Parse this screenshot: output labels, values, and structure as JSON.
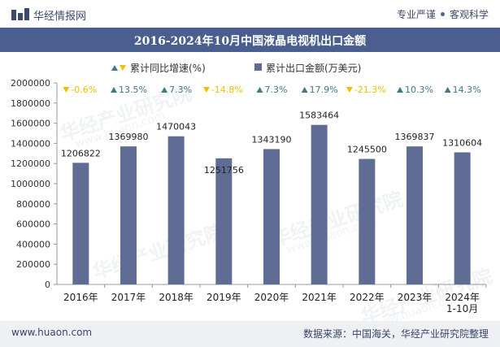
{
  "header": {
    "brand": "华经情报网",
    "tagline_left": "专业严谨",
    "tagline_right": "客观科学"
  },
  "footer": {
    "site": "www.huaon.com",
    "source": "数据来源：中国海关，华经产业研究院整理"
  },
  "watermark": {
    "text": "华经产业研究院",
    "url": "www.huaon.com"
  },
  "colors": {
    "bar": "#5f6d95",
    "growth_up": "#3e7a86",
    "growth_down": "#f0c000",
    "title_bg": "#4a5f8f",
    "brand": "#3d4a6b"
  },
  "chart_data": {
    "type": "bar",
    "title": "2016-2024年10月中国液晶电视机出口金额",
    "legend": {
      "growth_label": "累计同比增速(%)",
      "value_label": "累计出口金额(万美元)",
      "placement": "top"
    },
    "categories": [
      "2016年",
      "2017年",
      "2018年",
      "2019年",
      "2020年",
      "2021年",
      "2022年",
      "2023年",
      "2024年\n1-10月"
    ],
    "values": [
      1206822,
      1369980,
      1470043,
      1251756,
      1343190,
      1583464,
      1245500,
      1369837,
      1310604
    ],
    "value_labels": [
      "1206822",
      "1369980",
      "1470043",
      "1251756",
      "1343190",
      "1583464",
      "1245500",
      "1369837",
      "1310604"
    ],
    "growth": [
      -0.6,
      13.5,
      7.3,
      -14.8,
      7.3,
      17.9,
      -21.3,
      10.3,
      14.3
    ],
    "growth_labels": [
      "-0.6%",
      "13.5%",
      "7.3%",
      "-14.8%",
      "7.3%",
      "17.9%",
      "-21.3%",
      "10.3%",
      "14.3%"
    ],
    "y_ticks": [
      "0",
      "200000",
      "400000",
      "600000",
      "800000",
      "1000000",
      "1200000",
      "1400000",
      "1600000",
      "1800000",
      "2000000"
    ],
    "ylim": [
      0,
      2000000
    ],
    "grid": false
  }
}
